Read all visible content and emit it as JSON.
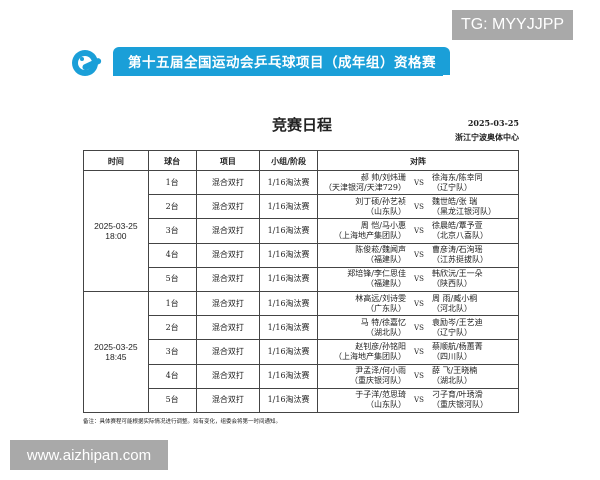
{
  "watermarks": {
    "tg": "TG: MYYJJPP",
    "site": "www.aizhipan.com"
  },
  "header": {
    "banner": "第十五届全国运动会乒乓球项目（成年组）资格赛",
    "logo_text": "TCH",
    "brand_color": "#1a9fd8"
  },
  "doc": {
    "title": "竞赛日程",
    "date": "2025-03-25",
    "venue": "浙江宁波奥体中心"
  },
  "table": {
    "columns": [
      "时间",
      "球台",
      "项目",
      "小组/阶段",
      "对阵"
    ],
    "vs": "VS",
    "blocks": [
      {
        "time": "2025-03-25\n18:00",
        "rows": [
          {
            "table": "1台",
            "event": "混合双打",
            "stage": "1/16淘汰赛",
            "left": [
              "郝 帅/刘炜珊",
              "（天津银河/天津729）"
            ],
            "right": [
              "徐海东/陈幸同",
              "（辽宁队）"
            ]
          },
          {
            "table": "2台",
            "event": "混合双打",
            "stage": "1/16淘汰赛",
            "left": [
              "刘丁硕/孙艺祯",
              "（山东队）"
            ],
            "right": [
              "魏世皓/张 瑞",
              "（黑龙江银河队）"
            ]
          },
          {
            "table": "3台",
            "event": "混合双打",
            "stage": "1/16淘汰赛",
            "left": [
              "周 恺/马小惠",
              "（上海地产集团队）"
            ],
            "right": [
              "徐晨皓/覃予萱",
              "（北京八喜队）"
            ]
          },
          {
            "table": "4台",
            "event": "混合双打",
            "stage": "1/16淘汰赛",
            "left": [
              "陈俊菘/魏闻声",
              "（福建队）"
            ],
            "right": [
              "曹彦涛/石洵瑶",
              "（江苏挺拔队）"
            ]
          },
          {
            "table": "5台",
            "event": "混合双打",
            "stage": "1/16淘汰赛",
            "left": [
              "郑培锋/李仁思佳",
              "（福建队）"
            ],
            "right": [
              "韩欣沅/王一朵",
              "（陕西队）"
            ]
          }
        ]
      },
      {
        "time": "2025-03-25\n18:45",
        "rows": [
          {
            "table": "1台",
            "event": "混合双打",
            "stage": "1/16淘汰赛",
            "left": [
              "林高远/刘诗雯",
              "（广东队）"
            ],
            "right": [
              "周 雨/臧小桐",
              "（河北队）"
            ]
          },
          {
            "table": "2台",
            "event": "混合双打",
            "stage": "1/16淘汰赛",
            "left": [
              "马 特/徐嘉忆",
              "（湖北队）"
            ],
            "right": [
              "袁励岑/王艺迪",
              "（辽宁队）"
            ]
          },
          {
            "table": "3台",
            "event": "混合双打",
            "stage": "1/16淘汰赛",
            "left": [
              "赵钊彦/孙铭阳",
              "（上海地产集团队）"
            ],
            "right": [
              "蔡顺航/杨蕙菁",
              "（四川队）"
            ]
          },
          {
            "table": "4台",
            "event": "混合双打",
            "stage": "1/16淘汰赛",
            "left": [
              "尹孟泽/何小雨",
              "（重庆银河队）"
            ],
            "right": [
              "薛 飞/王晓楠",
              "（湖北队）"
            ]
          },
          {
            "table": "5台",
            "event": "混合双打",
            "stage": "1/16淘汰赛",
            "left": [
              "于子洋/范思琦",
              "（山东队）"
            ],
            "right": [
              "刁子育/叶琇滑",
              "（重庆银河队）"
            ]
          }
        ]
      }
    ]
  },
  "note": "备注：具体赛程可能根据实际情况进行调整。如有变化，组委会将第一时间通知。"
}
